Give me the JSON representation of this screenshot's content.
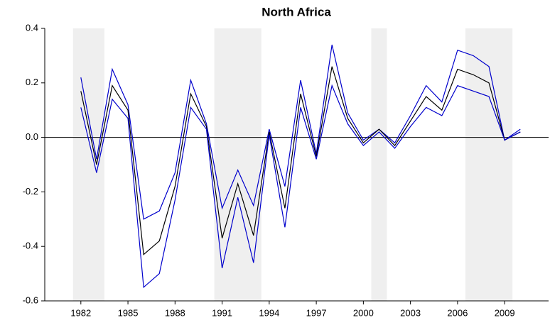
{
  "chart_data": {
    "type": "line",
    "title": "North Africa",
    "x": [
      1982,
      1983,
      1984,
      1985,
      1986,
      1987,
      1988,
      1989,
      1990,
      1991,
      1992,
      1993,
      1994,
      1995,
      1996,
      1997,
      1998,
      1999,
      2000,
      2001,
      2002,
      2003,
      2004,
      2005,
      2006,
      2007,
      2008,
      2009,
      2010
    ],
    "series": [
      {
        "color": "#0000cc",
        "values": [
          0.22,
          -0.08,
          0.25,
          0.12,
          -0.3,
          -0.27,
          -0.13,
          0.21,
          0.05,
          -0.26,
          -0.12,
          -0.25,
          0.03,
          -0.18,
          0.21,
          -0.06,
          0.34,
          0.09,
          -0.01,
          0.03,
          -0.02,
          0.08,
          0.19,
          0.13,
          0.32,
          0.3,
          0.26,
          -0.01,
          0.03
        ]
      },
      {
        "color": "#000000",
        "values": [
          0.17,
          -0.1,
          0.19,
          0.1,
          -0.43,
          -0.38,
          -0.18,
          0.16,
          0.04,
          -0.37,
          -0.17,
          -0.36,
          0.02,
          -0.26,
          0.16,
          -0.07,
          0.26,
          0.07,
          -0.02,
          0.03,
          -0.03,
          0.06,
          0.15,
          0.1,
          0.25,
          0.23,
          0.2,
          -0.01,
          0.02
        ]
      },
      {
        "color": "#0000cc",
        "values": [
          0.11,
          -0.13,
          0.14,
          0.07,
          -0.55,
          -0.5,
          -0.23,
          0.11,
          0.03,
          -0.48,
          -0.22,
          -0.46,
          0.01,
          -0.33,
          0.11,
          -0.08,
          0.19,
          0.05,
          -0.03,
          0.02,
          -0.04,
          0.04,
          0.11,
          0.08,
          0.19,
          0.17,
          0.15,
          -0.01,
          0.02
        ]
      }
    ],
    "shaded": [
      [
        1981.5,
        1983.5
      ],
      [
        1990.5,
        1993.5
      ],
      [
        2000.5,
        2001.5
      ],
      [
        2006.5,
        2009.5
      ]
    ],
    "shade_color": "#efefef",
    "xlim": [
      1979.7,
      2011.8
    ],
    "xticks": [
      1982,
      1985,
      1988,
      1991,
      1994,
      1997,
      2000,
      2003,
      2006,
      2009
    ],
    "ylim": [
      -0.6,
      0.4
    ],
    "yticks": [
      -0.6,
      -0.4,
      -0.2,
      {
        "value": 0,
        "label": "0.0"
      },
      0.2,
      0.4
    ],
    "zero_line": true
  }
}
